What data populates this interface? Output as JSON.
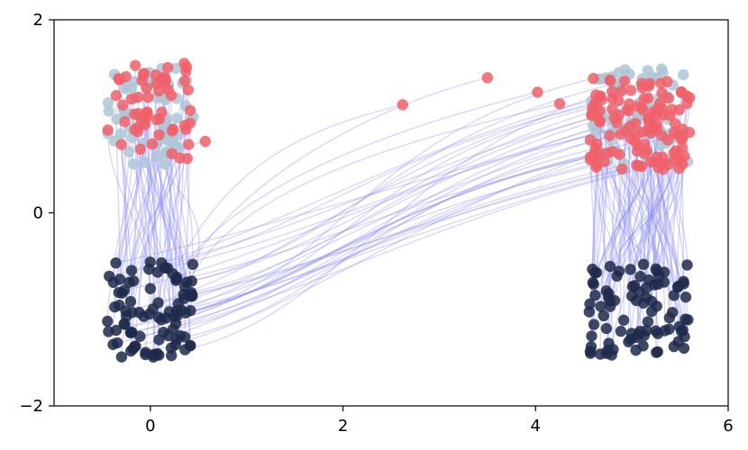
{
  "chart_data": {
    "type": "scatter",
    "title": "",
    "xlabel": "",
    "ylabel": "",
    "xlim": [
      -1,
      6
    ],
    "ylim": [
      -2,
      2
    ],
    "xticks": [
      0,
      2,
      4,
      6
    ],
    "yticks": [
      -2,
      0,
      2
    ],
    "xtick_labels": [
      "0",
      "2",
      "4",
      "6"
    ],
    "ytick_labels": [
      "−2",
      "0",
      "2"
    ],
    "grid": false,
    "colors": {
      "source": "#1f2a4a",
      "target": "#f0606a",
      "reference": "#aec6d6",
      "flow": "#8c8cf0"
    },
    "clusters": [
      {
        "cx": 0.0,
        "w": 0.9,
        "source_y": [
          -1.5,
          -0.5
        ],
        "reference_y": [
          0.5,
          1.5
        ],
        "target_y": [
          0.55,
          1.55
        ]
      },
      {
        "cx": 5.08,
        "w": 1.05,
        "source_y": [
          -1.5,
          -0.5
        ],
        "reference_y": [
          0.5,
          1.5
        ],
        "target_y": [
          0.45,
          1.4
        ]
      }
    ],
    "flow_count": 180,
    "cross_count": 32,
    "outliers": [
      {
        "x": 2.62,
        "y": 1.12
      },
      {
        "x": 3.5,
        "y": 1.4
      },
      {
        "x": 4.02,
        "y": 1.25
      },
      {
        "x": 4.25,
        "y": 1.13
      },
      {
        "x": 0.57,
        "y": 0.74
      }
    ]
  }
}
